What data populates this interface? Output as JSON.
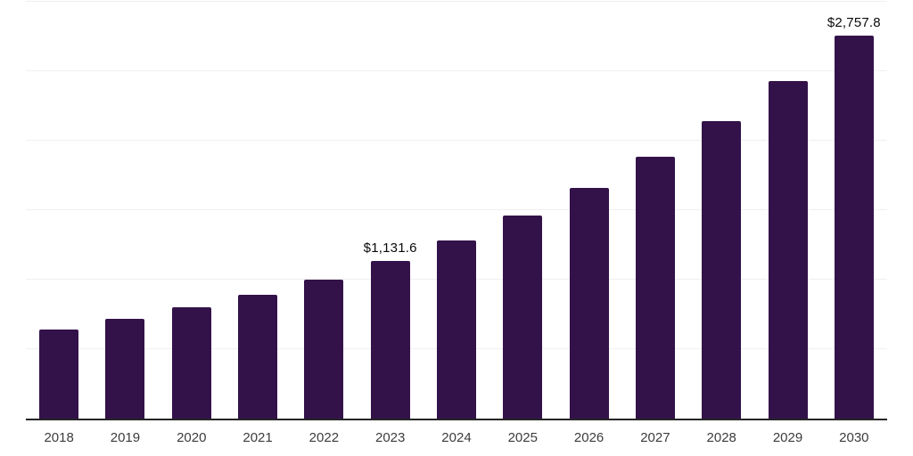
{
  "chart_data": {
    "type": "bar",
    "title": "",
    "xlabel": "",
    "ylabel": "",
    "categories": [
      "2018",
      "2019",
      "2020",
      "2021",
      "2022",
      "2023",
      "2024",
      "2025",
      "2026",
      "2027",
      "2028",
      "2029",
      "2030"
    ],
    "values": [
      643,
      715,
      803,
      888,
      1003,
      1131.6,
      1285.2,
      1459.7,
      1657.8,
      1882.8,
      2138.3,
      2428.5,
      2757.8
    ],
    "data_labels": [
      "",
      "",
      "",
      "",
      "",
      "$1,131.6",
      "",
      "",
      "",
      "",
      "",
      "",
      "$2,757.8"
    ],
    "ylim": [
      0,
      3000
    ],
    "gridline_interval": 500,
    "y_axis_tick_labels_visible": false,
    "legend_position": "none",
    "grid": "horizontal",
    "colors": {
      "bar": "#33124a",
      "axis_line": "#262626",
      "gridline": "#f0f0f0",
      "tick_text": "#3c3c3c",
      "data_label_text": "#0a0a0a",
      "background": "#ffffff"
    }
  }
}
